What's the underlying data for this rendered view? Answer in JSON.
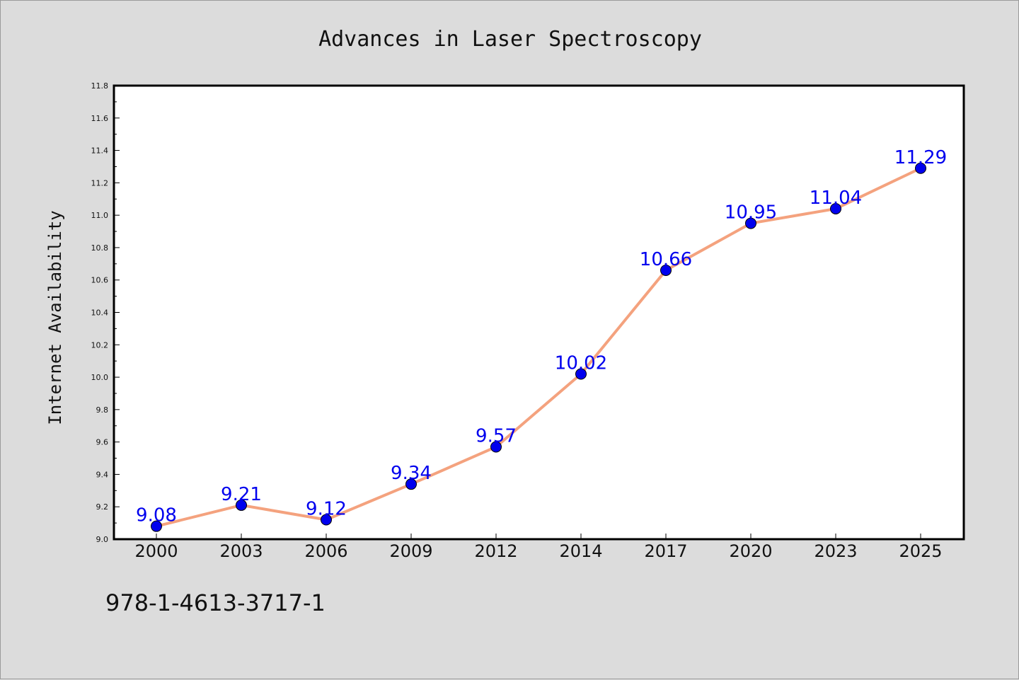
{
  "chart_data": {
    "type": "line",
    "title": "Advances in Laser Spectroscopy",
    "xlabel": "",
    "ylabel": "Internet Availability",
    "categories": [
      "2000",
      "2003",
      "2006",
      "2009",
      "2012",
      "2014",
      "2017",
      "2020",
      "2023",
      "2025"
    ],
    "series": [
      {
        "values": [
          9.08,
          9.21,
          9.12,
          9.34,
          9.57,
          10.02,
          10.66,
          10.95,
          11.04,
          11.29
        ],
        "labels": [
          "9.08",
          "9.21",
          "9.12",
          "9.34",
          "9.57",
          "10.02",
          "10.66",
          "10.95",
          "11.04",
          "11.29"
        ],
        "line_color": "#f4a27e",
        "marker_color": "#0000ee"
      }
    ],
    "ylim": [
      9.0,
      11.8
    ],
    "yticks": [
      "9.0",
      "9.2",
      "9.4",
      "9.6",
      "9.8",
      "10.0",
      "10.2",
      "10.4",
      "10.6",
      "10.8",
      "11.0",
      "11.2",
      "11.4",
      "11.6",
      "11.8"
    ],
    "grid": false,
    "legend": "none"
  },
  "footer_note": "978-1-4613-3717-1"
}
